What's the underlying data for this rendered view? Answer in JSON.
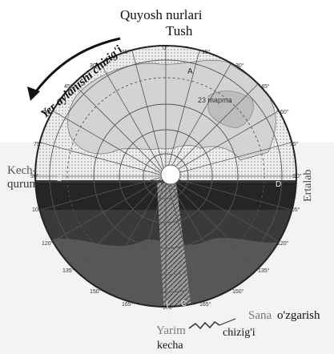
{
  "labels": {
    "sun_rays": "Quyosh nurlari",
    "noon": "Tush",
    "rotation_line": "Yer aylanishi chizig'i",
    "evening_1": "Kech-",
    "evening_2": "qurun",
    "morning": "Ertalab",
    "date_line_1": "Sana",
    "date_line_2": "o'zgarish",
    "date_line_3": "chizig'i",
    "midnight_1": "Yarim",
    "midnight_2": "kecha",
    "circle_label": "23 mapma"
  },
  "point_letters": [
    "A",
    "B",
    "D",
    "C"
  ],
  "meridians": [
    "0°",
    "15°",
    "30°",
    "45°",
    "60°",
    "75°",
    "90°",
    "105°",
    "120°",
    "135°",
    "150°",
    "165°",
    "180°",
    "165°",
    "150°",
    "135°",
    "120°",
    "105°",
    "90°",
    "75°",
    "60°",
    "45°",
    "30°",
    "15°"
  ],
  "colors": {
    "night": "#2e2e2e",
    "night_band": "#4a4a4a",
    "ocean_day": "#e9e9e9",
    "land": "#cfcfcf",
    "grid": "#555555",
    "arrow": "#111111"
  }
}
